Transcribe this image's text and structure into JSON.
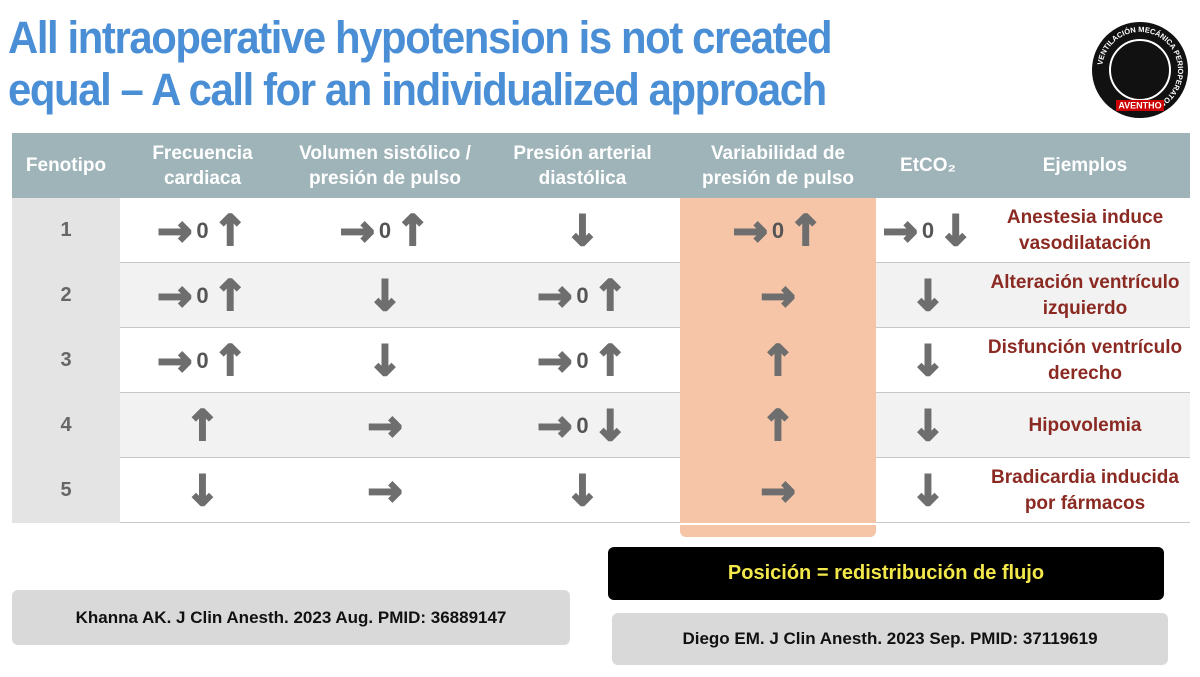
{
  "header": {
    "title": [
      "All intraoperative hypotension is not created",
      "equal – A call for an individualized approach"
    ],
    "logo": {
      "ring": "VENTILACIÓN MECÁNICA PERIOPERATORIA",
      "brand": "AVENTHO"
    }
  },
  "table": {
    "columns": [
      "Fenotipo",
      "Frecuencia cardiaca",
      "Volumen sistólico / presión de pulso",
      "Presión arterial diastólica",
      "Variabilidad de presión de pulso",
      "EtCO₂",
      "Ejemplos"
    ],
    "rows": [
      {
        "fenotipo": "1",
        "cells": [
          [
            "→",
            "0",
            "↑"
          ],
          [
            "→",
            "0",
            "↑"
          ],
          [
            "↓"
          ],
          [
            "→",
            "0",
            "↑"
          ],
          [
            "→",
            "0",
            "↓"
          ]
        ],
        "ejemplo": "Anestesia induce vasodilatación"
      },
      {
        "fenotipo": "2",
        "cells": [
          [
            "→",
            "0",
            "↑"
          ],
          [
            "↓"
          ],
          [
            "→",
            "0",
            "↑"
          ],
          [
            "→"
          ],
          [
            "↓"
          ]
        ],
        "ejemplo": "Alteración ventrículo izquierdo"
      },
      {
        "fenotipo": "3",
        "cells": [
          [
            "→",
            "0",
            "↑"
          ],
          [
            "↓"
          ],
          [
            "→",
            "0",
            "↑"
          ],
          [
            "↑"
          ],
          [
            "↓"
          ]
        ],
        "ejemplo": "Disfunción ventrículo derecho"
      },
      {
        "fenotipo": "4",
        "cells": [
          [
            "↑"
          ],
          [
            "→"
          ],
          [
            "→",
            "0",
            "↓"
          ],
          [
            "↑"
          ],
          [
            "↓"
          ]
        ],
        "ejemplo": "Hipovolemia"
      },
      {
        "fenotipo": "5",
        "cells": [
          [
            "↓"
          ],
          [
            "→"
          ],
          [
            "↓"
          ],
          [
            "→"
          ],
          [
            "↓"
          ]
        ],
        "ejemplo": "Bradicardia inducida por fármacos"
      }
    ]
  },
  "footer": {
    "highlight": "Posición = redistribución de flujo",
    "references": [
      "Khanna AK. J Clin Anesth. 2023 Aug. PMID: 36889147",
      "Diego EM. J Clin Anesth. 2023 Sep. PMID: 37119619"
    ]
  }
}
